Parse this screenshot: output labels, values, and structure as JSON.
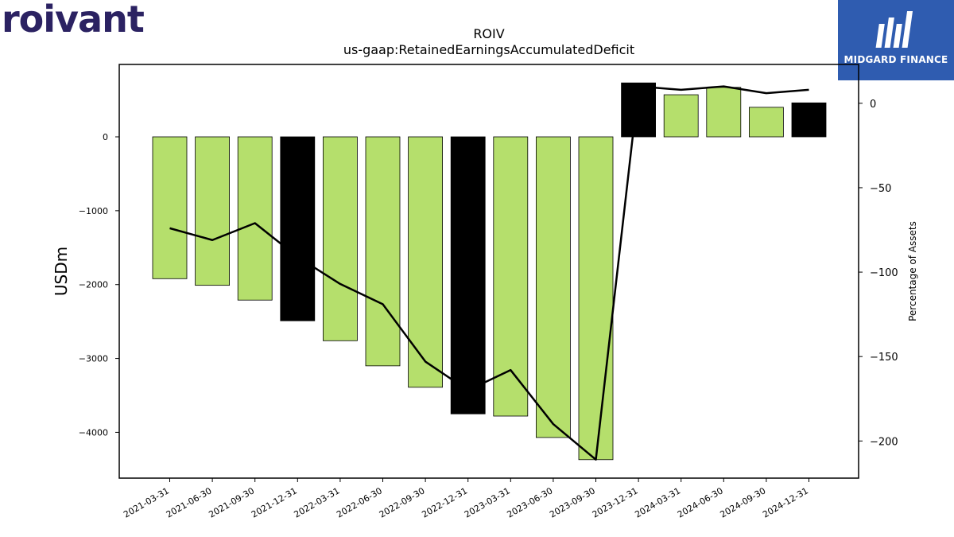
{
  "logos": {
    "left": "roivant",
    "right": "MIDGARD FINANCE"
  },
  "colors": {
    "bar_default": "#b5df6c",
    "bar_highlight": "#000000",
    "line": "#000000",
    "logo_left": "#2b2262",
    "logo_right_bg": "#2f5cb0"
  },
  "chart_data": {
    "type": "bar",
    "title": "ROIV",
    "subtitle": "us-gaap:RetainedEarningsAccumulatedDeficit",
    "ylabel": "USDm",
    "y2label": "Percentage of Assets",
    "ylim": [
      -4620,
      980
    ],
    "y2lim": [
      -222,
      23
    ],
    "yticks": [
      0,
      -1000,
      -2000,
      -3000,
      -4000
    ],
    "y2ticks": [
      0,
      -50,
      -100,
      -150,
      -200
    ],
    "grid": false,
    "categories": [
      "2021-03-31",
      "2021-06-30",
      "2021-09-30",
      "2021-12-31",
      "2022-03-31",
      "2022-06-30",
      "2022-09-30",
      "2022-12-31",
      "2023-03-31",
      "2023-06-30",
      "2023-09-30",
      "2023-12-31",
      "2024-03-31",
      "2024-06-30",
      "2024-09-30",
      "2024-12-31"
    ],
    "series": [
      {
        "kind": "bar",
        "axis": "left",
        "values": [
          -1920,
          -2010,
          -2210,
          -2490,
          -2760,
          -3100,
          -3390,
          -3750,
          -3780,
          -4070,
          -4370,
          730,
          570,
          670,
          400,
          460
        ],
        "highlight": [
          false,
          false,
          false,
          true,
          false,
          false,
          false,
          true,
          false,
          false,
          false,
          true,
          false,
          false,
          false,
          true
        ]
      },
      {
        "kind": "line",
        "axis": "right",
        "values": [
          -74,
          -81,
          -71,
          -91,
          -107,
          -119,
          -153,
          -170,
          -158,
          -190,
          -211,
          10,
          8,
          10,
          6,
          8
        ]
      }
    ]
  }
}
